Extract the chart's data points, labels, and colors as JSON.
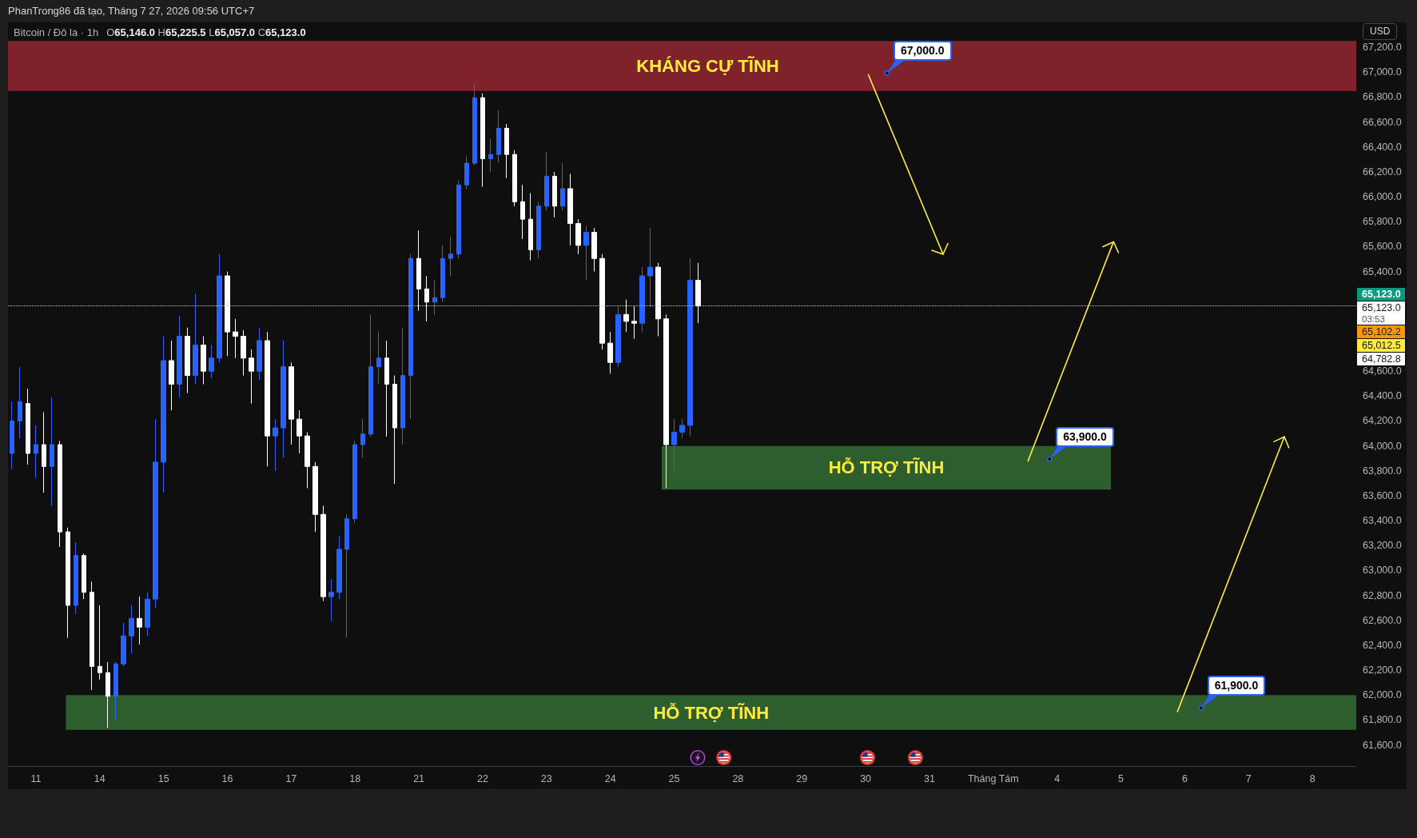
{
  "chart_data": {
    "type": "candlestick",
    "title": "Bitcoin / Đô la · 1h",
    "subtitle": "O65,146.0 H65,225.5 L65,057.0 C65,123.0",
    "ylabel": "USD",
    "annotations": [
      "PhanTrong86 đã tạo, Tháng 7 27, 2026 09:56 UTC+7",
      "67,000.0",
      "63,900.0",
      "61,900.0",
      "65,123.0",
      "03:53",
      "65,102.2",
      "65,012.5",
      "64,782.8"
    ],
    "categories": [
      null,
      null,
      null,
      "11",
      null,
      null,
      null,
      null,
      null,
      null,
      null,
      "14",
      null,
      null,
      null,
      null,
      null,
      null,
      null,
      "15",
      null,
      null,
      null,
      null,
      null,
      null,
      null,
      "16",
      null,
      null,
      null,
      null,
      null,
      null,
      null,
      "17",
      null,
      null,
      null,
      null,
      null,
      null,
      null,
      "18",
      null,
      null,
      null,
      null,
      null,
      null,
      null,
      "21",
      null,
      null,
      null,
      null,
      null,
      null,
      null,
      "22",
      null,
      null,
      null,
      null,
      null,
      null,
      null,
      "23",
      null,
      null,
      null,
      null,
      null,
      null,
      null,
      "24",
      null,
      null,
      null,
      null,
      null,
      null,
      null,
      "25",
      null,
      null,
      null,
      null,
      null,
      null,
      null,
      "28",
      null,
      null,
      null,
      null,
      null,
      null,
      null,
      "29",
      null,
      null,
      null,
      null,
      null,
      null,
      null,
      "30",
      null,
      null,
      null,
      null,
      null,
      null,
      null,
      "31",
      null,
      null,
      null,
      null,
      null,
      null,
      null,
      "Tháng Tám",
      null,
      null,
      null,
      null,
      null,
      null,
      null,
      "4",
      null,
      null,
      null,
      null,
      null,
      null,
      null,
      "5",
      null,
      null,
      null,
      null,
      null,
      null,
      null,
      "6",
      null,
      null,
      null,
      null,
      null,
      null,
      null,
      "7",
      null,
      null,
      null,
      null,
      null,
      null,
      null,
      "8",
      null,
      null,
      null,
      null,
      null
    ],
    "ohlc": [
      [
        63940,
        64355,
        63815,
        64200
      ],
      [
        64200,
        64635,
        64060,
        64355
      ],
      [
        64340,
        64460,
        63850,
        63940
      ],
      [
        63940,
        64165,
        63745,
        64010
      ],
      [
        64010,
        64270,
        63625,
        63835
      ],
      [
        63835,
        64390,
        63520,
        64010
      ],
      [
        64010,
        64040,
        63190,
        63310
      ],
      [
        63310,
        63345,
        62460,
        62720
      ],
      [
        62720,
        63225,
        62650,
        63120
      ],
      [
        63120,
        63135,
        62770,
        62825
      ],
      [
        62825,
        62910,
        62040,
        62230
      ],
      [
        62230,
        62720,
        62125,
        62180
      ],
      [
        62180,
        62265,
        61735,
        61990
      ],
      [
        61990,
        62265,
        61795,
        62250
      ],
      [
        62250,
        62580,
        62230,
        62475
      ],
      [
        62475,
        62720,
        62335,
        62615
      ],
      [
        62615,
        62790,
        62405,
        62545
      ],
      [
        62545,
        62825,
        62475,
        62770
      ],
      [
        62770,
        64215,
        62700,
        63870
      ],
      [
        63870,
        64880,
        63625,
        64685
      ],
      [
        64685,
        64845,
        64285,
        64495
      ],
      [
        64495,
        65045,
        64390,
        64880
      ],
      [
        64880,
        64950,
        64425,
        64565
      ],
      [
        64565,
        65220,
        64495,
        64810
      ],
      [
        64810,
        64880,
        64495,
        64600
      ],
      [
        64600,
        64810,
        64545,
        64705
      ],
      [
        64705,
        65540,
        64670,
        65365
      ],
      [
        65365,
        65400,
        64720,
        64915
      ],
      [
        64915,
        65020,
        64705,
        64880
      ],
      [
        64880,
        64930,
        64565,
        64705
      ],
      [
        64705,
        64775,
        64340,
        64600
      ],
      [
        64600,
        64950,
        64530,
        64845
      ],
      [
        64845,
        64915,
        63835,
        64080
      ],
      [
        64080,
        64215,
        63800,
        64145
      ],
      [
        64145,
        64845,
        63905,
        64635
      ],
      [
        64635,
        64670,
        64010,
        64215
      ],
      [
        64215,
        64285,
        63940,
        64080
      ],
      [
        64080,
        64110,
        63660,
        63835
      ],
      [
        63835,
        63870,
        63310,
        63450
      ],
      [
        63450,
        63520,
        62755,
        62790
      ],
      [
        62790,
        62930,
        62595,
        62825
      ],
      [
        62825,
        63275,
        62770,
        63170
      ],
      [
        63170,
        63450,
        62460,
        63415
      ],
      [
        63415,
        64040,
        63380,
        64010
      ],
      [
        64010,
        64215,
        63905,
        64095
      ],
      [
        64095,
        65055,
        64075,
        64635
      ],
      [
        64635,
        64915,
        64495,
        64705
      ],
      [
        64705,
        64845,
        64075,
        64495
      ],
      [
        64495,
        64565,
        63695,
        64145
      ],
      [
        64145,
        64950,
        64010,
        64565
      ],
      [
        64565,
        65540,
        64215,
        65505
      ],
      [
        65505,
        65730,
        65085,
        65260
      ],
      [
        65260,
        65365,
        65000,
        65155
      ],
      [
        65155,
        65330,
        65050,
        65190
      ],
      [
        65190,
        65610,
        65155,
        65505
      ],
      [
        65505,
        65680,
        65365,
        65540
      ],
      [
        65540,
        66130,
        65505,
        66095
      ],
      [
        66095,
        66325,
        66060,
        66270
      ],
      [
        66270,
        66915,
        66255,
        66795
      ],
      [
        66795,
        66830,
        66080,
        66305
      ],
      [
        66305,
        66465,
        66200,
        66340
      ],
      [
        66340,
        66695,
        66270,
        66550
      ],
      [
        66550,
        66585,
        66150,
        66340
      ],
      [
        66340,
        66375,
        65925,
        65960
      ],
      [
        65960,
        66095,
        65660,
        65820
      ],
      [
        65820,
        66030,
        65490,
        65575
      ],
      [
        65575,
        65960,
        65505,
        65925
      ],
      [
        65925,
        66360,
        65890,
        66165
      ],
      [
        66165,
        66200,
        65835,
        65925
      ],
      [
        65925,
        66270,
        65890,
        66065
      ],
      [
        66065,
        66185,
        65610,
        65785
      ],
      [
        65785,
        65820,
        65540,
        65610
      ],
      [
        65610,
        65765,
        65330,
        65715
      ],
      [
        65715,
        65750,
        65400,
        65505
      ],
      [
        65505,
        65540,
        64775,
        64825
      ],
      [
        64825,
        64915,
        64580,
        64670
      ],
      [
        64670,
        65120,
        64635,
        65055
      ],
      [
        65055,
        65175,
        64915,
        65000
      ],
      [
        65000,
        65120,
        64860,
        64985
      ],
      [
        64985,
        65435,
        64915,
        65365
      ],
      [
        65365,
        65750,
        65120,
        65435
      ],
      [
        65435,
        65470,
        64880,
        65020
      ],
      [
        65020,
        65055,
        63660,
        64010
      ],
      [
        64010,
        64215,
        63800,
        64110
      ],
      [
        64110,
        64215,
        64060,
        64165
      ],
      [
        64165,
        65505,
        64075,
        65330
      ],
      [
        65330,
        65470,
        64985,
        65123
      ],
      null,
      null,
      null,
      null,
      null,
      null,
      null,
      null,
      null,
      null,
      null,
      null,
      null,
      null,
      null,
      null,
      null,
      null,
      null,
      null,
      null,
      null,
      null,
      null,
      null,
      null,
      null,
      null,
      null,
      null,
      null,
      null,
      null,
      null,
      null,
      null,
      null,
      null,
      null,
      null,
      null,
      null,
      null,
      null,
      null,
      null,
      null,
      null,
      null,
      null,
      null,
      null,
      null,
      null,
      null,
      null,
      null,
      null,
      null,
      null,
      null,
      null,
      null,
      null,
      null,
      null,
      null,
      null,
      null,
      null,
      null,
      null,
      null,
      null,
      null,
      null,
      null,
      null,
      null,
      null,
      null,
      null
    ],
    "colors": [
      "#2962ff",
      "#2962ff",
      "#ffffff",
      "#2962ff",
      "#ffffff",
      "#2962ff",
      "#ffffff",
      "#ffffff",
      "#2962ff",
      "#ffffff",
      "#ffffff",
      "#ffffff",
      "#ffffff",
      "#2962ff",
      "#2962ff",
      "#2962ff",
      "#ffffff",
      "#2962ff",
      "#2962ff",
      "#2962ff",
      "#ffffff",
      "#2962ff",
      "#ffffff",
      "#2962ff",
      "#ffffff",
      "#2962ff",
      "#2962ff",
      "#ffffff",
      "#ffffff",
      "#ffffff",
      "#ffffff",
      "#2962ff",
      "#ffffff",
      "#2962ff",
      "#2962ff",
      "#ffffff",
      "#ffffff",
      "#ffffff",
      "#ffffff",
      "#ffffff",
      "#2962ff",
      "#2962ff",
      "#2962ff",
      "#2962ff",
      "#2962ff",
      "#2962ff",
      "#2962ff",
      "#ffffff",
      "#ffffff",
      "#2962ff",
      "#2962ff",
      "#ffffff",
      "#ffffff",
      "#2962ff",
      "#2962ff",
      "#2962ff",
      "#2962ff",
      "#2962ff",
      "#2962ff",
      "#ffffff",
      "#2962ff",
      "#2962ff",
      "#ffffff",
      "#ffffff",
      "#ffffff",
      "#ffffff",
      "#2962ff",
      "#2962ff",
      "#ffffff",
      "#2962ff",
      "#ffffff",
      "#ffffff",
      "#2962ff",
      "#ffffff",
      "#ffffff",
      "#ffffff",
      "#2962ff",
      "#ffffff",
      "#ffffff",
      "#2962ff",
      "#2962ff",
      "#ffffff",
      "#ffffff",
      "#2962ff",
      "#2962ff",
      "#2962ff",
      "#ffffff",
      null,
      null,
      null,
      null,
      null,
      null,
      null,
      null,
      null,
      null,
      null,
      null,
      null,
      null,
      null,
      null,
      null,
      null,
      null,
      null,
      null,
      null,
      null,
      null,
      null,
      null,
      null,
      null,
      null,
      null,
      null,
      null,
      null,
      null,
      null,
      null,
      null,
      null,
      null,
      null,
      null,
      null,
      null,
      null,
      null,
      null,
      null,
      null,
      null,
      null,
      null,
      null,
      null,
      null,
      null,
      null,
      null,
      null,
      null,
      null,
      null,
      null,
      null,
      null,
      null,
      null,
      null,
      null,
      null,
      null,
      null,
      null,
      null,
      null,
      null,
      null,
      null,
      null,
      null,
      null,
      null,
      null
    ],
    "ylim": [
      61430,
      67400
    ],
    "yticks": [
      {
        "value": 61600,
        "label": "61,600.0"
      },
      {
        "value": 61800,
        "label": "61,800.0"
      },
      {
        "value": 62000,
        "label": "62,000.0"
      },
      {
        "value": 62200,
        "label": "62,200.0"
      },
      {
        "value": 62400,
        "label": "62,400.0"
      },
      {
        "value": 62600,
        "label": "62,600.0"
      },
      {
        "value": 62800,
        "label": "62,800.0"
      },
      {
        "value": 63000,
        "label": "63,000.0"
      },
      {
        "value": 63200,
        "label": "63,200.0"
      },
      {
        "value": 63400,
        "label": "63,400.0"
      },
      {
        "value": 63600,
        "label": "63,600.0"
      },
      {
        "value": 63800,
        "label": "63,800.0"
      },
      {
        "value": 64000,
        "label": "64,000.0"
      },
      {
        "value": 64200,
        "label": "64,200.0"
      },
      {
        "value": 64400,
        "label": "64,400.0"
      },
      {
        "value": 64600,
        "label": "64,600.0"
      },
      {
        "value": 65400,
        "label": "65,400.0"
      },
      {
        "value": 65600,
        "label": "65,600.0"
      },
      {
        "value": 65800,
        "label": "65,800.0"
      },
      {
        "value": 66000,
        "label": "66,000.0"
      },
      {
        "value": 66200,
        "label": "66,200.0"
      },
      {
        "value": 66400,
        "label": "66,400.0"
      },
      {
        "value": 66600,
        "label": "66,600.0"
      },
      {
        "value": 66800,
        "label": "66,800.0"
      },
      {
        "value": 67000,
        "label": "67,000.0"
      },
      {
        "value": 67200,
        "label": "67,200.0"
      }
    ],
    "bands": [
      {
        "axis": "y",
        "from": 66850,
        "to": 67250,
        "label": "KHÁNG CỰ TĨNH",
        "color": "#80222b"
      },
      {
        "axis": "y",
        "from": 63650,
        "to": 64000,
        "label": "HỖ TRỢ TĨNH",
        "color": "#2e5e2e"
      },
      {
        "axis": "y",
        "from": 61720,
        "to": 62000,
        "label": "HỖ TRỢ TĨNH",
        "color": "#2e5e2e"
      }
    ],
    "ref_lines": [
      {
        "axis": "y",
        "value": 65123,
        "label": "65,123.0",
        "line_style": "dotted"
      }
    ]
  }
}
